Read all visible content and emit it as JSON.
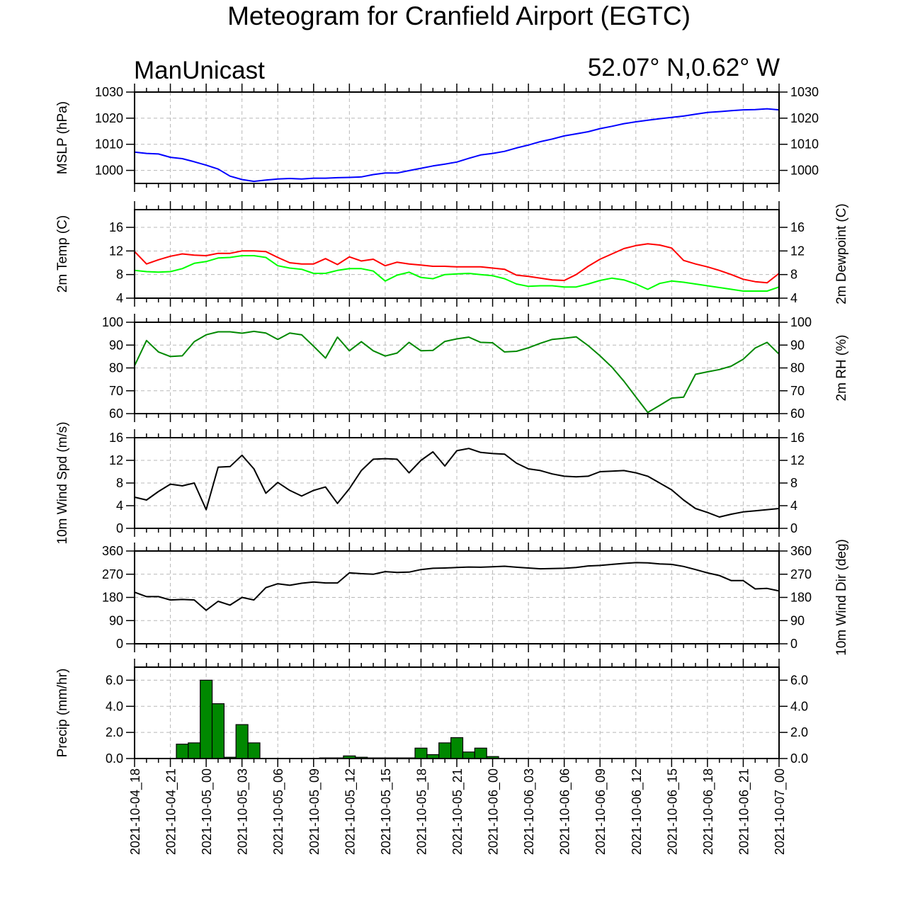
{
  "header": {
    "title": "Meteogram for Cranfield Airport (EGTC)",
    "model": "ManUnicast",
    "location": "52.07° N,0.62° W"
  },
  "chart_data": {
    "type": "meteogram",
    "time_labels": [
      "2021-10-04_18",
      "2021-10-04_21",
      "2021-10-05_00",
      "2021-10-05_03",
      "2021-10-05_06",
      "2021-10-05_09",
      "2021-10-05_12",
      "2021-10-05_15",
      "2021-10-05_18",
      "2021-10-05_21",
      "2021-10-06_00",
      "2021-10-06_03",
      "2021-10-06_06",
      "2021-10-06_09",
      "2021-10-06_12",
      "2021-10-06_15",
      "2021-10-06_18",
      "2021-10-06_21",
      "2021-10-07_00"
    ],
    "x_range_hours": [
      0,
      54
    ],
    "time_step_hours": 1,
    "panels": [
      {
        "id": "mslp",
        "ylabel_left": "MSLP (hPa)",
        "ylabel_right": "",
        "ylim": [
          995,
          1030
        ],
        "yticks": [
          1000,
          1010,
          1020,
          1030
        ],
        "tick_format": "int",
        "right_ticklabels": true,
        "series": [
          {
            "color": "#0000ff",
            "kind": "line",
            "values": [
              1007,
              1006.5,
              1006.3,
              1005,
              1004.5,
              1003.3,
              1002,
              1000.5,
              997.8,
              996.5,
              995.8,
              996.3,
              996.7,
              996.9,
              996.7,
              997.0,
              997.0,
              997.2,
              997.3,
              997.5,
              998.4,
              999.0,
              999.0,
              999.9,
              1000.8,
              1001.7,
              1002.4,
              1003.2,
              1004.6,
              1005.9,
              1006.5,
              1007.3,
              1008.6,
              1009.7,
              1011.0,
              1012.0,
              1013.2,
              1014.0,
              1014.8,
              1016.0,
              1016.9,
              1017.9,
              1018.6,
              1019.2,
              1019.8,
              1020.3,
              1020.8,
              1021.5,
              1022.2,
              1022.5,
              1022.9,
              1023.2,
              1023.3,
              1023.6,
              1023.2
            ]
          }
        ]
      },
      {
        "id": "temp",
        "ylabel_left": "2m Temp (C)",
        "ylabel_right": "2m Dewpoint (C)",
        "ylim": [
          4,
          19
        ],
        "yticks": [
          4,
          8,
          12,
          16
        ],
        "tick_format": "int",
        "right_ticklabels": true,
        "series": [
          {
            "color": "#ff0000",
            "kind": "line",
            "values": [
              11.9,
              9.8,
              10.5,
              11.1,
              11.5,
              11.3,
              11.2,
              11.6,
              11.6,
              12.0,
              12.0,
              11.9,
              10.9,
              10.0,
              9.8,
              9.8,
              10.7,
              9.7,
              11.0,
              10.3,
              10.6,
              9.5,
              10.1,
              9.8,
              9.6,
              9.4,
              9.4,
              9.3,
              9.3,
              9.3,
              9.1,
              8.9,
              7.9,
              7.7,
              7.4,
              7.1,
              7.0,
              8.0,
              9.4,
              10.6,
              11.5,
              12.4,
              12.9,
              13.2,
              13.0,
              12.5,
              10.4,
              9.8,
              9.3,
              8.7,
              8.0,
              7.2,
              6.8,
              6.6,
              8.2
            ]
          },
          {
            "color": "#00ff00",
            "kind": "line",
            "values": [
              8.7,
              8.5,
              8.4,
              8.5,
              9.0,
              9.9,
              10.2,
              10.8,
              10.9,
              11.2,
              11.2,
              10.9,
              9.5,
              9.1,
              8.9,
              8.2,
              8.2,
              8.7,
              9.0,
              9.0,
              8.6,
              6.9,
              7.9,
              8.4,
              7.5,
              7.3,
              8.0,
              8.1,
              8.2,
              8.0,
              7.8,
              7.3,
              6.4,
              6.0,
              6.1,
              6.1,
              5.9,
              5.9,
              6.4,
              7.0,
              7.4,
              7.1,
              6.4,
              5.5,
              6.5,
              6.9,
              6.7,
              6.4,
              6.1,
              5.8,
              5.5,
              5.2,
              5.2,
              5.2,
              5.9
            ]
          }
        ]
      },
      {
        "id": "rh",
        "ylabel_left": "",
        "ylabel_right": "2m RH (%)",
        "ylim": [
          60,
          100
        ],
        "yticks": [
          60,
          70,
          80,
          90,
          100
        ],
        "tick_format": "int",
        "right_ticklabels": true,
        "series": [
          {
            "color": "#008800",
            "kind": "line",
            "values": [
              81,
              92,
              87,
              85,
              85.3,
              91.5,
              94.5,
              95.8,
              95.8,
              95.2,
              96.0,
              95.3,
              92.5,
              95.3,
              94.5,
              89.5,
              84.3,
              93.5,
              87.5,
              91.5,
              87.5,
              85.2,
              86.5,
              91.2,
              87.5,
              87.7,
              91.6,
              92.7,
              93.5,
              91.2,
              91.0,
              87.0,
              87.3,
              88.8,
              90.8,
              92.5,
              93.0,
              93.6,
              89.8,
              85.3,
              80.3,
              74.2,
              67.3,
              60.5,
              63.6,
              66.8,
              67.2,
              77.2,
              78.3,
              79.3,
              80.8,
              83.8,
              88.7,
              91.2,
              86.0
            ]
          }
        ]
      },
      {
        "id": "wspd",
        "ylabel_left": "10m Wind Spd (m/s)",
        "ylabel_right": "",
        "ylim": [
          0,
          16
        ],
        "yticks": [
          0,
          4,
          8,
          12,
          16
        ],
        "tick_format": "int",
        "right_ticklabels": true,
        "series": [
          {
            "color": "#000000",
            "kind": "line",
            "values": [
              5.5,
              5.0,
              6.5,
              7.8,
              7.5,
              8.0,
              3.3,
              10.8,
              10.9,
              12.9,
              10.5,
              6.2,
              8.1,
              6.7,
              5.7,
              6.7,
              7.3,
              4.4,
              7.0,
              10.2,
              12.2,
              12.3,
              12.2,
              9.8,
              12.0,
              13.5,
              11.0,
              13.7,
              14.1,
              13.4,
              13.2,
              13.1,
              11.5,
              10.5,
              10.2,
              9.6,
              9.2,
              9.1,
              9.2,
              10.0,
              10.1,
              10.2,
              9.8,
              9.2,
              8.0,
              6.8,
              5.0,
              3.5,
              2.8,
              2.0,
              2.5,
              2.9,
              3.1,
              3.3,
              3.5
            ]
          }
        ]
      },
      {
        "id": "wdir",
        "ylabel_left": "",
        "ylabel_right": "10m Wind Dir (deg)",
        "ylim": [
          0,
          360
        ],
        "yticks": [
          0,
          90,
          180,
          270,
          360
        ],
        "tick_format": "int",
        "right_ticklabels": true,
        "series": [
          {
            "color": "#000000",
            "kind": "line",
            "values": [
              200,
              183,
              183,
              170,
              172,
              170,
              130,
              165,
              150,
              180,
              170,
              218,
              233,
              227,
              235,
              240,
              236,
              236,
              275,
              272,
              270,
              280,
              277,
              278,
              288,
              293,
              294,
              296,
              298,
              297,
              299,
              301,
              297,
              294,
              291,
              292,
              293,
              296,
              302,
              304,
              308,
              312,
              315,
              314,
              310,
              308,
              300,
              288,
              275,
              265,
              245,
              245,
              213,
              215,
              205
            ]
          }
        ]
      },
      {
        "id": "precip",
        "ylabel_left": "Precip (mm/hr)",
        "ylabel_right": "",
        "ylim": [
          0,
          7
        ],
        "yticks": [
          0,
          2,
          4,
          6
        ],
        "tick_format": "fixed1",
        "right_ticklabels": true,
        "series": [
          {
            "color": "#008800",
            "kind": "bar",
            "values": [
              0,
              0,
              0,
              0,
              1.1,
              1.2,
              6.0,
              4.2,
              0.1,
              2.6,
              1.2,
              0,
              0,
              0,
              0,
              0,
              0.05,
              0.05,
              0.2,
              0.1,
              0.05,
              0.05,
              0.05,
              0.05,
              0.8,
              0.3,
              1.2,
              1.6,
              0.5,
              0.8,
              0.15,
              0,
              0,
              0,
              0,
              0,
              0,
              0,
              0,
              0,
              0,
              0,
              0,
              0,
              0,
              0,
              0,
              0,
              0,
              0,
              0,
              0,
              0,
              0,
              0
            ]
          }
        ]
      }
    ]
  }
}
